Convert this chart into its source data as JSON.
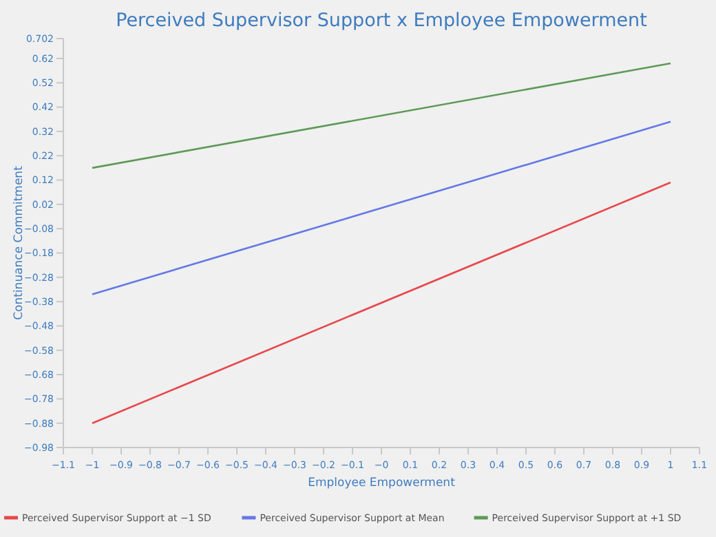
{
  "chart_data": {
    "type": "line",
    "title": "Perceived Supervisor Support x Employee Empowerment",
    "xlabel": "Employee Empowerment",
    "ylabel": "Continuance Commitment",
    "x": [
      -1,
      1
    ],
    "series": [
      {
        "name": "Perceived Supervisor Support at −1 SD",
        "color": "#e8474b",
        "values": [
          -0.88,
          0.11
        ]
      },
      {
        "name": "Perceived Supervisor Support at Mean",
        "color": "#6478e6",
        "values": [
          -0.35,
          0.36
        ]
      },
      {
        "name": "Perceived Supervisor Support at +1 SD",
        "color": "#5e9a57",
        "values": [
          0.17,
          0.6
        ]
      }
    ],
    "xlim": [
      -1.1,
      1.1
    ],
    "xticks": [
      -1.1,
      -1,
      -0.9,
      -0.8,
      -0.7,
      -0.6,
      -0.5,
      -0.4,
      -0.3,
      -0.2,
      -0.1,
      {
        "value": 0,
        "label": "−0"
      },
      0.1,
      0.2,
      0.3,
      0.4,
      0.5,
      0.6,
      0.7,
      0.8,
      0.9,
      1,
      1.1
    ],
    "ylim": [
      -0.98,
      0.702
    ],
    "yticks": [
      -0.98,
      -0.88,
      -0.78,
      -0.68,
      -0.58,
      -0.48,
      -0.38,
      -0.28,
      -0.18,
      -0.08,
      0.02,
      0.12,
      0.22,
      0.32,
      0.42,
      0.52,
      0.62,
      0.702
    ],
    "grid": false,
    "legend": "bottom",
    "marker": "none",
    "line_style": "solid"
  }
}
